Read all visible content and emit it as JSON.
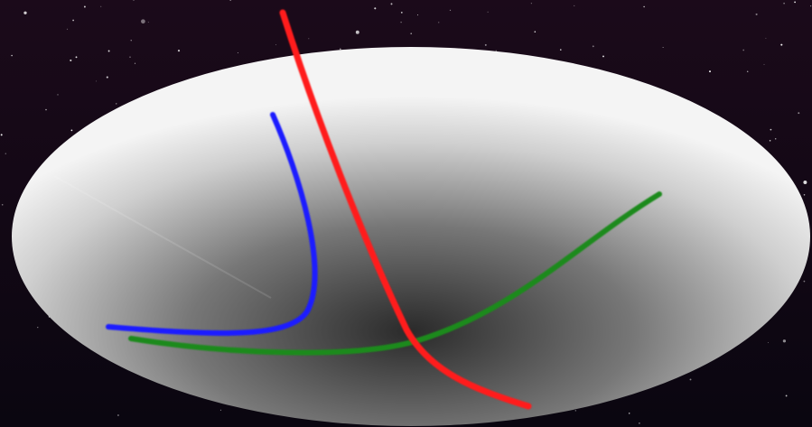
{
  "scene": {
    "background": "starry-night-sky",
    "colors": {
      "sky_top": "#1b0a1a",
      "sky_bottom": "#0a0610",
      "ellipse_edge": "#f4f4f4",
      "ellipse_center": "#2a2a2a",
      "red_curve": "#ff1a1a",
      "blue_curve": "#1a1aff",
      "green_curve": "#1a8a1a"
    },
    "curves": [
      {
        "name": "red-curve",
        "color": "#ff1a1a"
      },
      {
        "name": "blue-curve",
        "color": "#1a1aff"
      },
      {
        "name": "green-curve",
        "color": "#1a8a1a"
      }
    ]
  }
}
